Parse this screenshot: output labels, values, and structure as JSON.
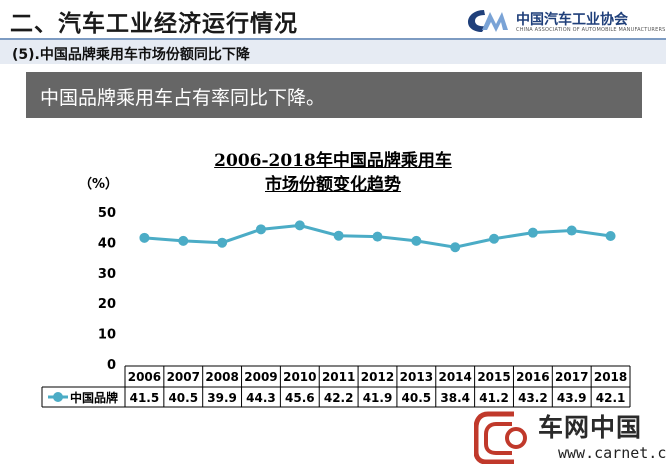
{
  "header": {
    "title": "二、汽车工业经济运行情况",
    "logo_cn": "中国汽车工业协会",
    "logo_en": "CHINA ASSOCIATION OF AUTOMOBILE MANUFACTURERS"
  },
  "subtitle": "(5).中国品牌乘用车市场份额同比下降",
  "banner": "中国品牌乘用车占有率同比下降。",
  "watermark": {
    "text": "车网中国",
    "url": "www.carnet.cn"
  },
  "colors": {
    "series": "#4bacc6",
    "banner": "#666666",
    "rule": "#7d9bc2"
  },
  "chart_data": {
    "type": "line",
    "title_line1": "2006-2018年中国品牌乘用车",
    "title_line2": "市场份额变化趋势",
    "ylabel": "（%）",
    "ylim": [
      0,
      50
    ],
    "yticks": [
      0,
      10,
      20,
      30,
      40,
      50
    ],
    "categories": [
      "2006",
      "2007",
      "2008",
      "2009",
      "2010",
      "2011",
      "2012",
      "2013",
      "2014",
      "2015",
      "2016",
      "2017",
      "2018"
    ],
    "series": [
      {
        "name": "中国品牌",
        "values": [
          41.5,
          40.5,
          39.9,
          44.3,
          45.6,
          42.2,
          41.9,
          40.5,
          38.4,
          41.2,
          43.2,
          43.9,
          42.1
        ]
      }
    ],
    "grid": false,
    "legend": "data-table"
  }
}
